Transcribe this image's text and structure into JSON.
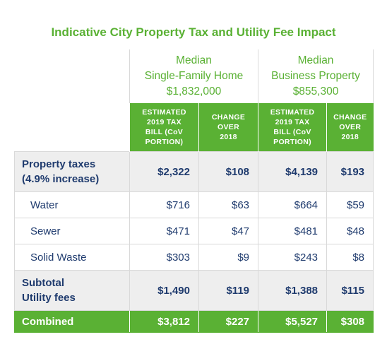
{
  "title": "Indicative City Property Tax and Utility Fee Impact",
  "groups": [
    {
      "name": "Median",
      "sub": "Single-Family Home",
      "value": "$1,832,000"
    },
    {
      "name": "Median",
      "sub": "Business Property",
      "value": "$855,300"
    }
  ],
  "subheaders": {
    "estimated": [
      "ESTIMATED",
      "2019 TAX",
      "BILL (CoV",
      "PORTION)"
    ],
    "change": [
      "CHANGE",
      "OVER",
      "2018"
    ]
  },
  "rows": {
    "property_taxes": {
      "label1": "Property taxes",
      "label2": "(4.9% increase)",
      "values": [
        "$2,322",
        "$108",
        "$4,139",
        "$193"
      ]
    },
    "water": {
      "label": "Water",
      "values": [
        "$716",
        "$63",
        "$664",
        "$59"
      ]
    },
    "sewer": {
      "label": "Sewer",
      "values": [
        "$471",
        "$47",
        "$481",
        "$48"
      ]
    },
    "solid_waste": {
      "label": "Solid Waste",
      "values": [
        "$303",
        "$9",
        "$243",
        "$8"
      ]
    },
    "subtotal": {
      "label1": "Subtotal",
      "label2": "Utility fees",
      "values": [
        "$1,490",
        "$119",
        "$1,388",
        "$115"
      ]
    },
    "combined": {
      "label": "Combined",
      "values": [
        "$3,812",
        "$227",
        "$5,527",
        "$308"
      ]
    }
  }
}
